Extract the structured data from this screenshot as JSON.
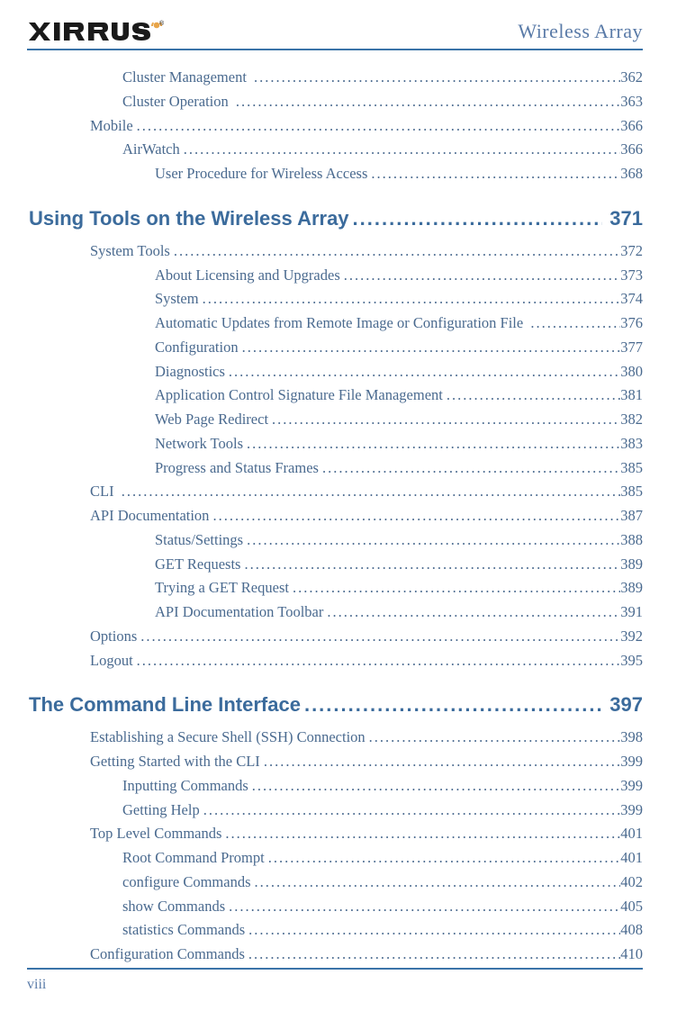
{
  "header": {
    "logo_text": "XIRRUS",
    "doc_title": "Wireless Array"
  },
  "colors": {
    "accent": "#3a73a8",
    "text": "#4a6a8f",
    "section": "#3b6b9c",
    "header_text": "#5a7ba8",
    "logo_dark": "#1a1a1a",
    "logo_orange": "#e8a54a"
  },
  "toc": [
    {
      "type": "entry",
      "indent": 3,
      "label": "Cluster Management",
      "trailing_space": true,
      "page": "362"
    },
    {
      "type": "entry",
      "indent": 3,
      "label": "Cluster Operation",
      "trailing_space": true,
      "page": "363"
    },
    {
      "type": "entry",
      "indent": 2,
      "label": "Mobile",
      "page": "366"
    },
    {
      "type": "entry",
      "indent": 3,
      "label": "AirWatch",
      "page": "366"
    },
    {
      "type": "entry",
      "indent": 3,
      "indent_label_extra": 36,
      "label": "User Procedure for Wireless Access",
      "page": "368"
    },
    {
      "type": "section",
      "label": "Using Tools on the Wireless Array",
      "page": "371"
    },
    {
      "type": "entry",
      "indent": 2,
      "label": "System Tools",
      "page": "372"
    },
    {
      "type": "entry",
      "indent": 3,
      "indent_label_extra": 36,
      "label": "About Licensing and Upgrades",
      "page": "373"
    },
    {
      "type": "entry",
      "indent": 3,
      "indent_label_extra": 36,
      "label": "System",
      "page": "374"
    },
    {
      "type": "entry",
      "indent": 3,
      "indent_label_extra": 36,
      "label": "Automatic Updates from Remote Image or Configuration File",
      "trailing_space": true,
      "page": "376"
    },
    {
      "type": "entry",
      "indent": 3,
      "indent_label_extra": 36,
      "label": "Configuration",
      "page": "377"
    },
    {
      "type": "entry",
      "indent": 3,
      "indent_label_extra": 36,
      "label": "Diagnostics",
      "page": "380"
    },
    {
      "type": "entry",
      "indent": 3,
      "indent_label_extra": 36,
      "label": "Application Control Signature File Management",
      "page": "381"
    },
    {
      "type": "entry",
      "indent": 3,
      "indent_label_extra": 36,
      "label": "Web Page Redirect",
      "page": "382"
    },
    {
      "type": "entry",
      "indent": 3,
      "indent_label_extra": 36,
      "label": "Network Tools",
      "page": "383"
    },
    {
      "type": "entry",
      "indent": 3,
      "indent_label_extra": 36,
      "label": "Progress and Status Frames",
      "page": "385"
    },
    {
      "type": "entry",
      "indent": 2,
      "label": "CLI",
      "trailing_space": true,
      "page": "385"
    },
    {
      "type": "entry",
      "indent": 2,
      "label": "API Documentation",
      "page": "387"
    },
    {
      "type": "entry",
      "indent": 3,
      "indent_label_extra": 36,
      "label": "Status/Settings",
      "page": "388"
    },
    {
      "type": "entry",
      "indent": 3,
      "indent_label_extra": 36,
      "label": "GET Requests",
      "page": "389"
    },
    {
      "type": "entry",
      "indent": 3,
      "indent_label_extra": 36,
      "label": "Trying a GET Request",
      "page": "389"
    },
    {
      "type": "entry",
      "indent": 3,
      "indent_label_extra": 36,
      "label": "API Documentation Toolbar",
      "page": "391"
    },
    {
      "type": "entry",
      "indent": 2,
      "label": "Options",
      "page": "392"
    },
    {
      "type": "entry",
      "indent": 2,
      "label": "Logout",
      "page": "395"
    },
    {
      "type": "section",
      "label": "The Command Line Interface",
      "page": "397"
    },
    {
      "type": "entry",
      "indent": 2,
      "label": "Establishing a Secure Shell (SSH) Connection",
      "page": "398"
    },
    {
      "type": "entry",
      "indent": 2,
      "label": "Getting Started with the CLI",
      "page": "399"
    },
    {
      "type": "entry",
      "indent": 3,
      "label": "Inputting Commands",
      "page": "399"
    },
    {
      "type": "entry",
      "indent": 3,
      "label": "Getting Help",
      "page": "399"
    },
    {
      "type": "entry",
      "indent": 2,
      "label": "Top Level Commands",
      "page": "401"
    },
    {
      "type": "entry",
      "indent": 3,
      "label": "Root Command Prompt",
      "page": "401"
    },
    {
      "type": "entry",
      "indent": 3,
      "label": "configure Commands",
      "page": "402"
    },
    {
      "type": "entry",
      "indent": 3,
      "label": "show Commands",
      "page": "405"
    },
    {
      "type": "entry",
      "indent": 3,
      "label": "statistics Commands",
      "page": "408"
    },
    {
      "type": "entry",
      "indent": 2,
      "label": "Configuration Commands",
      "page": "410"
    }
  ],
  "footer": {
    "page_number": "viii"
  }
}
